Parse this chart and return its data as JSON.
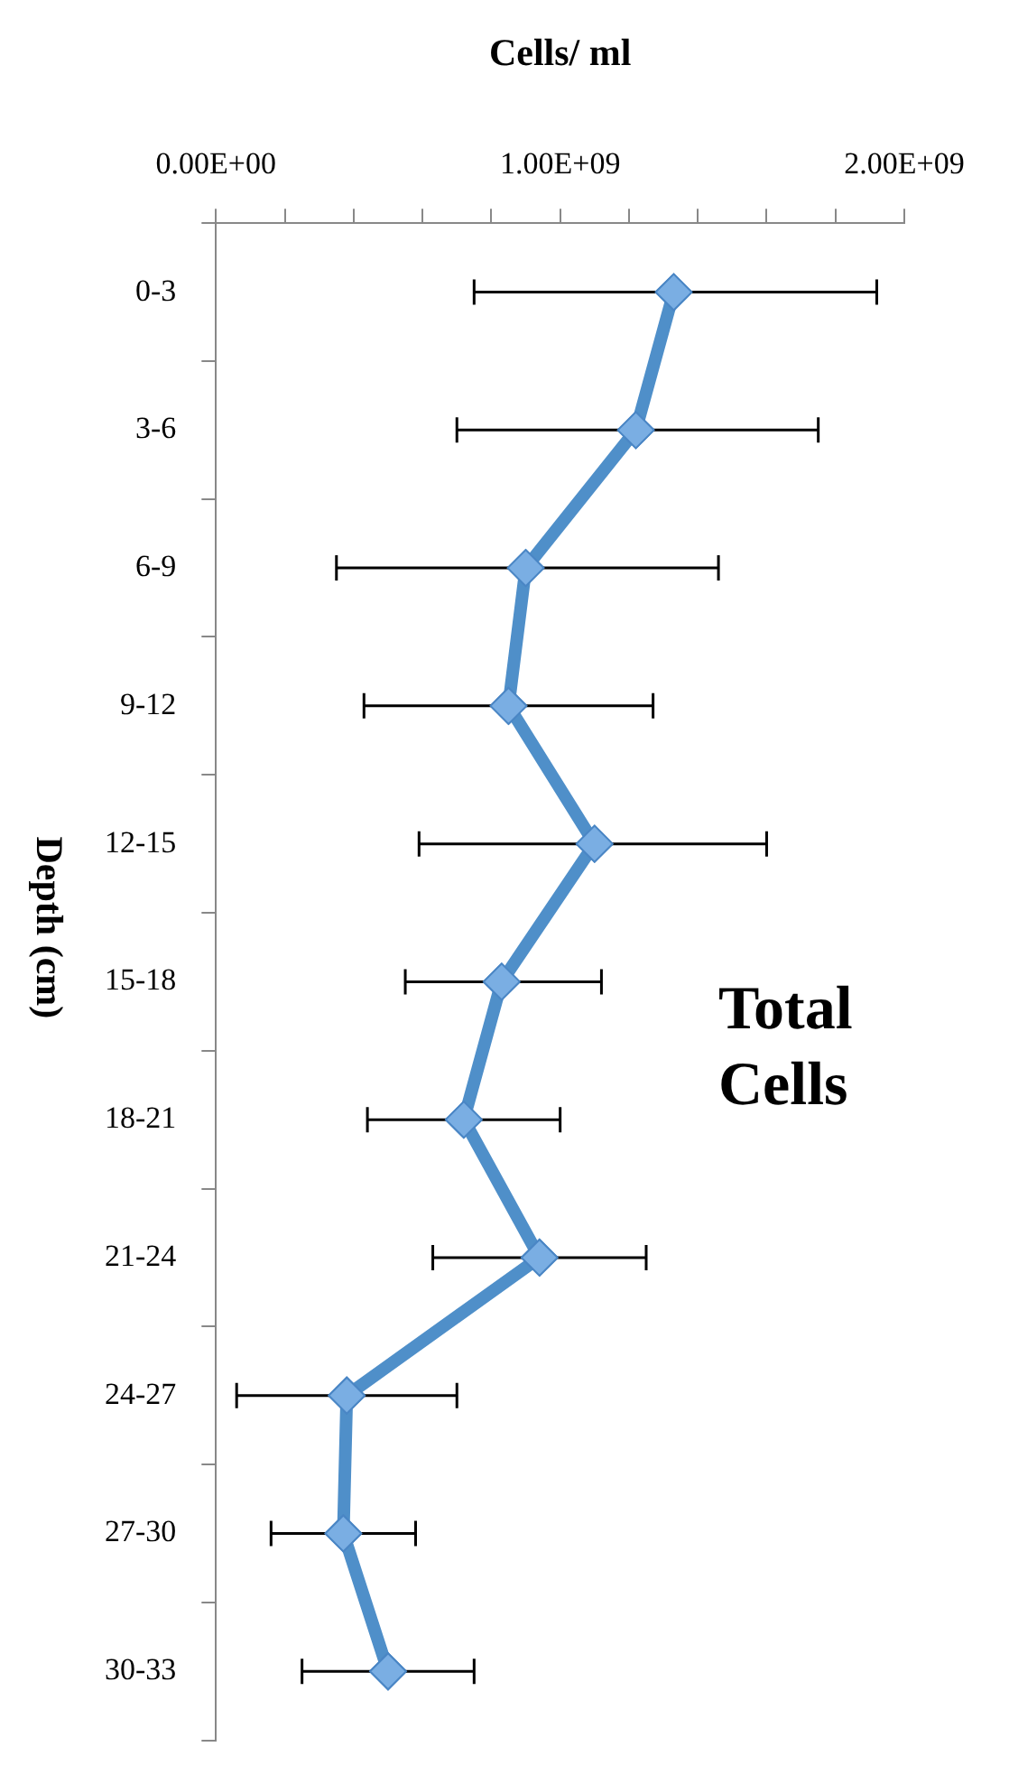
{
  "chart_data": {
    "type": "line",
    "xlabel": "Cells/ ml",
    "ylabel": "Depth (cm)",
    "orientation": "horizontal",
    "categories": [
      "0-3",
      "3-6",
      "6-9",
      "9-12",
      "12-15",
      "15-18",
      "18-21",
      "21-24",
      "24-27",
      "27-30",
      "30-33"
    ],
    "series": [
      {
        "name": "Total Cells",
        "color": "#4f8fc9",
        "values": [
          1330000000,
          1220000000,
          900000000,
          850000000,
          1100000000,
          830000000,
          720000000,
          940000000,
          380000000,
          370000000,
          500000000
        ],
        "errors": [
          [
            750000000,
            1920000000
          ],
          [
            700000000,
            1750000000
          ],
          [
            350000000,
            1460000000
          ],
          [
            430000000,
            1270000000
          ],
          [
            590000000,
            1600000000
          ],
          [
            550000000,
            1120000000
          ],
          [
            440000000,
            1000000000
          ],
          [
            630000000,
            1250000000
          ],
          [
            60000000,
            700000000
          ],
          [
            160000000,
            580000000
          ],
          [
            250000000,
            750000000
          ]
        ]
      }
    ],
    "xlim": [
      0,
      2000000000
    ],
    "xticks": [
      {
        "value": 0,
        "label": "0.00E+00"
      },
      {
        "value": 200000000,
        "label": null
      },
      {
        "value": 400000000,
        "label": null
      },
      {
        "value": 600000000,
        "label": null
      },
      {
        "value": 800000000,
        "label": null
      },
      {
        "value": 1000000000,
        "label": "1.00E+09"
      },
      {
        "value": 1200000000,
        "label": null
      },
      {
        "value": 1400000000,
        "label": null
      },
      {
        "value": 1600000000,
        "label": null
      },
      {
        "value": 1800000000,
        "label": null
      },
      {
        "value": 2000000000,
        "label": "2.00E+09"
      }
    ],
    "marker": "diamond",
    "line_style": "solid",
    "legend": false,
    "grid": false
  }
}
